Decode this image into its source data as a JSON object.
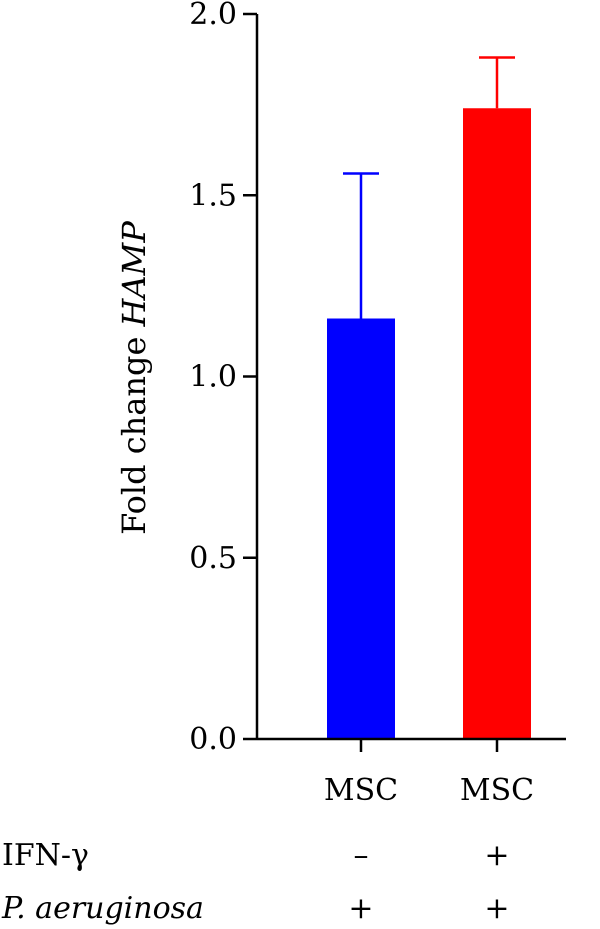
{
  "chart_data": {
    "type": "bar",
    "categories": [
      "MSC",
      "MSC"
    ],
    "values": [
      1.16,
      1.74
    ],
    "errors": [
      0.4,
      0.14
    ],
    "colors": [
      "#0000FF",
      "#FF0000"
    ],
    "ylabel_prefix": "Fold change ",
    "ylabel_gene": "HAMP",
    "ylim": [
      0.0,
      2.0
    ],
    "yticks": [
      "0.0",
      "0.5",
      "1.0",
      "1.5",
      "2.0"
    ],
    "grid": false,
    "conditions": [
      {
        "label": "IFN-γ",
        "italic": false,
        "values": [
          "–",
          "+"
        ]
      },
      {
        "label": "P. aeruginosa",
        "italic": true,
        "values": [
          "+",
          "+"
        ]
      }
    ]
  }
}
